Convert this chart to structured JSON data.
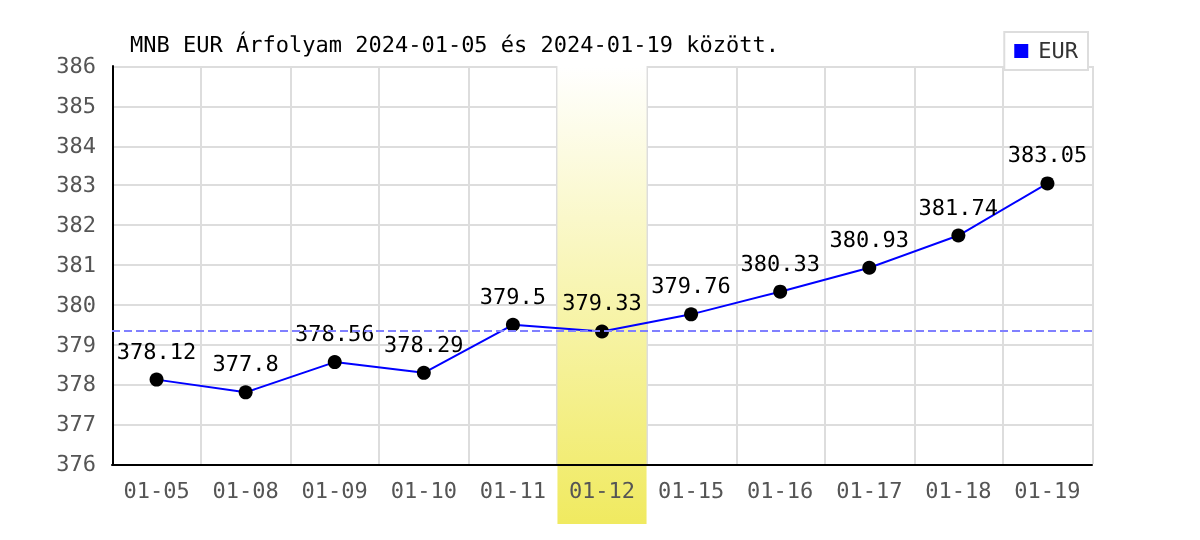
{
  "chart_data": {
    "type": "line",
    "title": "MNB EUR Árfolyam 2024-01-05 és 2024-01-19 között.",
    "categories": [
      "01-05",
      "01-08",
      "01-09",
      "01-10",
      "01-11",
      "01-12",
      "01-15",
      "01-16",
      "01-17",
      "01-18",
      "01-19"
    ],
    "series": [
      {
        "name": "EUR",
        "color": "#0000ff",
        "values": [
          378.12,
          377.8,
          378.56,
          378.29,
          379.5,
          379.33,
          379.76,
          380.33,
          380.93,
          381.74,
          383.05
        ]
      }
    ],
    "ylim": [
      376,
      386
    ],
    "yticks": [
      376,
      377,
      378,
      379,
      380,
      381,
      382,
      383,
      384,
      385,
      386
    ],
    "grid": true,
    "legend": "top right",
    "marker": "circle",
    "line_style": "solid",
    "data_labels": true,
    "ref_lines": [
      {
        "axis": "y",
        "value": 379.33,
        "color": "#8080ff",
        "line_style": "dashed"
      }
    ],
    "bands": [
      {
        "axis": "x",
        "from": "01-12",
        "to": "01-12",
        "color": "#f0ea60"
      }
    ]
  }
}
